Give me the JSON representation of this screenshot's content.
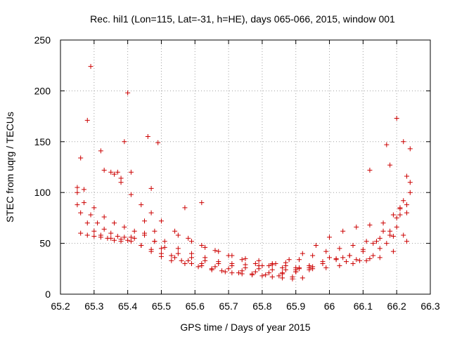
{
  "chart_data": {
    "type": "scatter",
    "title": "Rec. hil1 (Lon=115, Lat=-31, h=HE), days 065-066, 2015, window 001",
    "xlabel": "GPS time / Days of year 2015",
    "ylabel": "STEC from uqrg / TECUs",
    "xlim": [
      65.2,
      66.3
    ],
    "ylim": [
      0,
      250
    ],
    "xticks": [
      "65.2",
      "65.3",
      "65.4",
      "65.5",
      "65.6",
      "65.7",
      "65.8",
      "65.9",
      "66",
      "66.1",
      "66.2",
      "66.3"
    ],
    "yticks": [
      "0",
      "50",
      "100",
      "150",
      "200",
      "250"
    ],
    "grid": true,
    "marker": "+",
    "color": "#cc0000",
    "series": [
      {
        "x": [
          65.25,
          65.26,
          65.28,
          65.3,
          65.32,
          65.34,
          65.36,
          65.38,
          65.4,
          65.42,
          65.45,
          65.48,
          65.5,
          65.53,
          65.56,
          65.59,
          65.62,
          65.65,
          65.68,
          65.71,
          65.74,
          65.77,
          65.8,
          65.83,
          65.86,
          65.89
        ],
        "y": [
          88,
          80,
          70,
          62,
          58,
          55,
          53,
          52,
          53,
          55,
          60,
          52,
          45,
          38,
          33,
          30,
          28,
          25,
          23,
          21,
          20,
          19,
          18,
          17,
          16,
          15
        ]
      },
      {
        "x": [
          65.25,
          65.27,
          65.29,
          65.31,
          65.33,
          65.35,
          65.37,
          65.39,
          65.41,
          65.44,
          65.47,
          65.5,
          65.53,
          65.57,
          65.61,
          65.65,
          65.69,
          65.73,
          65.77,
          65.81,
          65.85,
          65.89,
          65.92
        ],
        "y": [
          105,
          90,
          78,
          70,
          64,
          60,
          57,
          56,
          56,
          48,
          42,
          37,
          33,
          30,
          27,
          24,
          22,
          21,
          20,
          19,
          18,
          17,
          16
        ]
      },
      {
        "x": [
          65.26,
          65.28,
          65.3,
          65.32,
          65.35,
          65.38,
          65.41,
          65.44,
          65.47,
          65.5,
          65.54,
          65.58,
          65.62,
          65.66,
          65.7,
          65.74,
          65.78,
          65.82,
          65.86,
          65.9,
          65.94
        ],
        "y": [
          60,
          58,
          57,
          56,
          55,
          54,
          52,
          48,
          44,
          40,
          36,
          33,
          30,
          27,
          25,
          23,
          22,
          21,
          21,
          22,
          24
        ]
      },
      {
        "x": [
          65.3,
          65.33,
          65.36,
          65.39,
          65.42,
          65.45,
          65.48,
          65.51,
          65.55,
          65.59,
          65.63,
          65.67,
          65.71,
          65.75,
          65.79,
          65.83,
          65.87,
          65.91,
          65.95
        ],
        "y": [
          85,
          76,
          70,
          66,
          62,
          58,
          52,
          46,
          40,
          36,
          33,
          30,
          28,
          26,
          25,
          24,
          24,
          25,
          27
        ]
      },
      {
        "x": [
          65.35,
          65.38,
          65.41,
          65.44,
          65.47,
          65.5,
          65.54,
          65.58,
          65.62,
          65.66,
          65.7,
          65.74,
          65.78,
          65.82,
          65.86,
          65.9,
          65.94,
          65.98
        ],
        "y": [
          120,
          110,
          98,
          88,
          80,
          72,
          62,
          55,
          48,
          43,
          38,
          34,
          30,
          28,
          26,
          26,
          28,
          30
        ]
      },
      {
        "x": [
          65.45,
          65.48,
          65.51,
          65.55,
          65.59,
          65.63,
          65.67,
          65.71,
          65.75,
          65.79,
          65.83,
          65.87,
          65.91,
          65.95,
          65.99,
          66.03,
          66.07,
          66.11,
          66.15,
          66.19,
          66.22
        ],
        "y": [
          72,
          62,
          52,
          45,
          40,
          36,
          32,
          30,
          29,
          28,
          29,
          31,
          34,
          38,
          42,
          45,
          48,
          52,
          55,
          57,
          58
        ]
      },
      {
        "x": [
          65.55,
          65.59,
          65.63,
          65.67,
          65.71,
          65.75,
          65.79,
          65.83,
          65.87,
          65.91,
          65.95,
          65.99,
          66.03,
          66.07,
          66.11,
          66.15,
          66.19,
          66.23
        ],
        "y": [
          58,
          52,
          46,
          42,
          38,
          35,
          33,
          30,
          28,
          26,
          25,
          26,
          28,
          30,
          33,
          36,
          42,
          52
        ]
      },
      {
        "x": [
          65.8,
          65.84,
          65.88,
          65.92,
          65.96,
          66.0,
          66.04,
          66.08,
          66.12,
          66.16,
          66.2,
          66.23
        ],
        "y": [
          28,
          30,
          34,
          40,
          48,
          56,
          62,
          66,
          68,
          70,
          75,
          80
        ]
      },
      {
        "x": [
          65.86,
          65.9,
          65.94,
          65.98,
          66.02,
          66.06,
          66.1,
          66.14,
          66.18,
          66.21,
          66.24
        ],
        "y": [
          20,
          22,
          26,
          30,
          34,
          38,
          44,
          52,
          62,
          78,
          100
        ]
      },
      {
        "x": [
          65.9,
          65.94,
          65.98,
          66.02,
          66.06,
          66.1,
          66.13,
          66.16,
          66.19,
          66.22
        ],
        "y": [
          24,
          28,
          32,
          35,
          38,
          42,
          50,
          62,
          78,
          92
        ]
      },
      {
        "x": [
          66.0,
          66.04,
          66.08,
          66.12,
          66.15,
          66.18,
          66.21,
          66.24
        ],
        "y": [
          36,
          36,
          34,
          35,
          45,
          58,
          85,
          110
        ]
      },
      {
        "x": [
          66.05,
          66.09,
          66.13,
          66.17,
          66.2,
          66.23
        ],
        "y": [
          32,
          33,
          38,
          50,
          66,
          88
        ]
      },
      {
        "x": [
          65.25,
          65.26,
          65.27,
          65.28,
          65.29,
          65.32,
          65.33,
          65.36,
          65.37,
          65.38,
          65.39,
          65.4,
          65.41,
          65.46,
          65.47,
          65.49,
          65.57,
          65.62,
          66.12,
          66.17,
          66.18,
          66.2,
          66.21,
          66.22,
          66.23,
          66.24
        ],
        "y": [
          100,
          134,
          103,
          171,
          224,
          141,
          122,
          118,
          120,
          114,
          150,
          198,
          120,
          155,
          104,
          149,
          85,
          90,
          122,
          147,
          127,
          173,
          84,
          150,
          116,
          143
        ]
      }
    ]
  }
}
